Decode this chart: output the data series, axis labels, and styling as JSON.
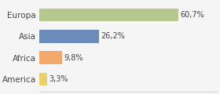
{
  "categories": [
    "Europa",
    "Asia",
    "Africa",
    "America"
  ],
  "values": [
    60.7,
    26.2,
    9.8,
    3.3
  ],
  "labels": [
    "60,7%",
    "26,2%",
    "9,8%",
    "3,3%"
  ],
  "bar_colors": [
    "#b5c98e",
    "#6b8cba",
    "#f0a96b",
    "#e8d06b"
  ],
  "background_color": "#f5f5f5",
  "xlim": [
    0,
    78
  ],
  "figsize": [
    2.8,
    1.2
  ],
  "dpi": 100
}
